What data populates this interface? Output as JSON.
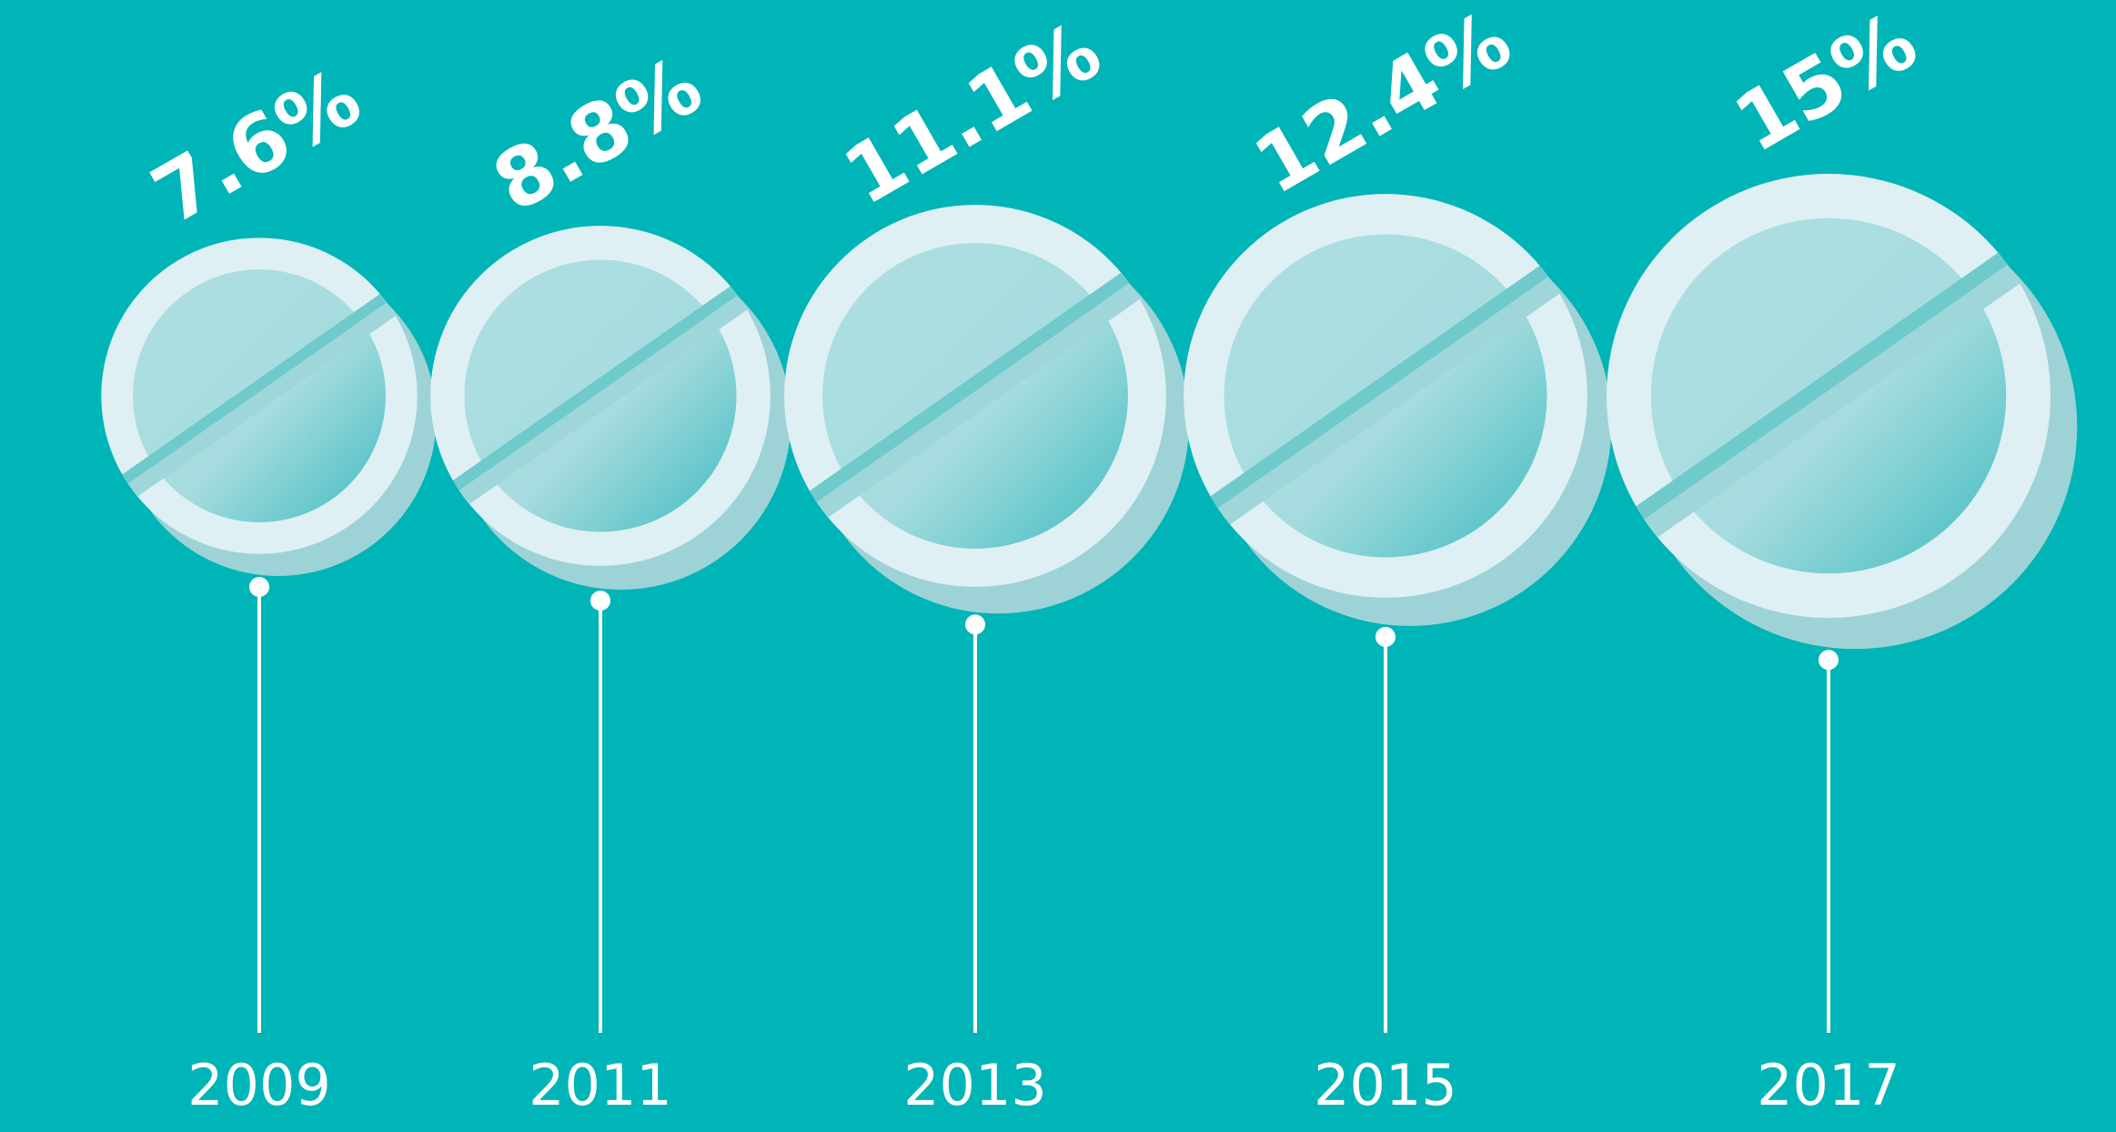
{
  "chart_data": {
    "type": "pictorial",
    "categories": [
      "2009",
      "2011",
      "2013",
      "2015",
      "2017"
    ],
    "values": [
      7.6,
      8.8,
      11.1,
      12.4,
      15
    ],
    "value_labels": [
      "7.6%",
      "8.8%",
      "11.1%",
      "12.4%",
      "15%"
    ],
    "color": "#def0f4"
  }
}
